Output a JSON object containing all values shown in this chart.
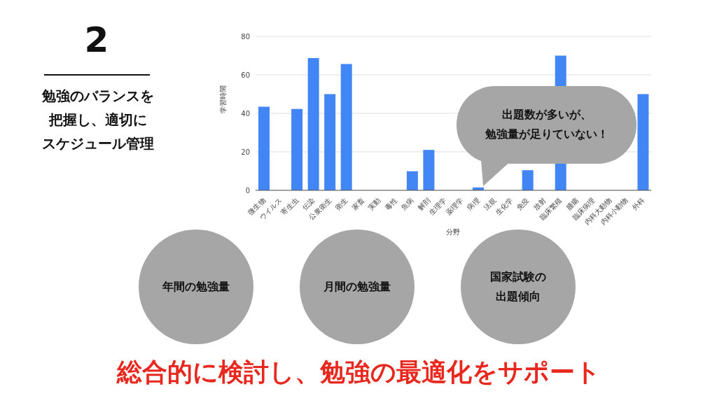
{
  "chart_data": {
    "type": "bar",
    "xlabel": "分野",
    "ylabel": "学習時間",
    "categories": [
      "微生物",
      "ウイルス",
      "寄生虫",
      "伝染",
      "公衆衛生",
      "衛生",
      "家畜",
      "実動",
      "毒性",
      "魚病",
      "解剖",
      "生理学",
      "薬理学",
      "病理",
      "法規",
      "生化学",
      "免疫",
      "放射",
      "臨床繁殖",
      "腫瘍",
      "臨床病理",
      "内科大動物",
      "内科小動物",
      "外科"
    ],
    "values": [
      43.5,
      0,
      42.3,
      68.7,
      50,
      65.6,
      0,
      0,
      0,
      9.9,
      21,
      0,
      0,
      1.5,
      0,
      0,
      10.5,
      0,
      70,
      null,
      0,
      null,
      null,
      50
    ],
    "color": "#4285f4",
    "ylim": [
      0,
      80
    ],
    "yticks": [
      0,
      20,
      40,
      60,
      80
    ],
    "grid": "y",
    "legend": false,
    "annotations": [
      "2",
      "勉強のバランスを",
      "把握し、適切に",
      "スケジュール管理",
      "出題数が多いが、",
      "勉強量が足りていない！",
      "年間の勉強量",
      "月間の勉強量",
      "国家試験の",
      "出題傾向",
      "総合的に検討し、勉強の最適化をサポート"
    ]
  }
}
